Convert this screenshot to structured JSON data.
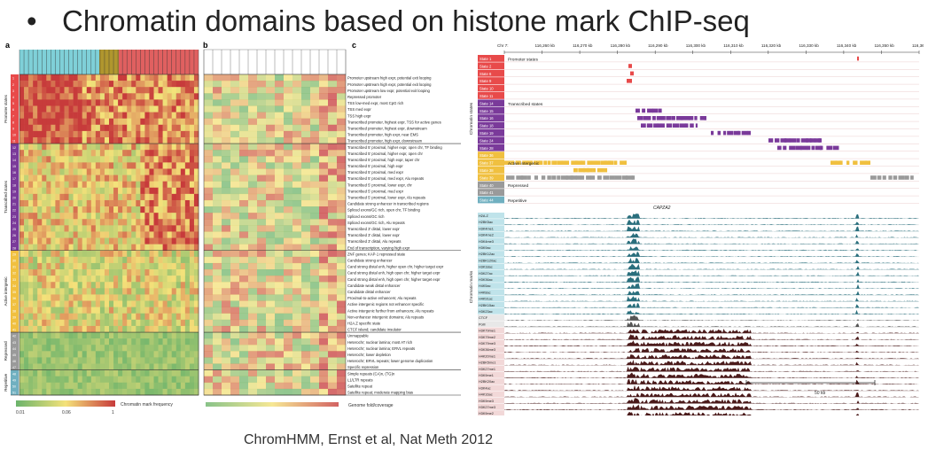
{
  "slide": {
    "title": "Chromatin domains based on histone mark ChIP-seq",
    "caption": "ChromHMM, Ernst et al, Nat Meth 2012"
  },
  "panels": {
    "a_label": "a",
    "b_label": "b",
    "c_label": "c",
    "a_side_groups": [
      "Promoter states",
      "Transcribed states",
      "Active intergenic",
      "Repressed",
      "Repetitive"
    ],
    "scale_label": "Chromatin mark frequency",
    "scale_ticks": [
      "0.01",
      "0.06",
      "1"
    ],
    "genome_fold_label": "Genome fold/coverage",
    "state_numbers": [
      "1",
      "2",
      "3",
      "4",
      "5",
      "6",
      "7",
      "8",
      "9",
      "10",
      "11",
      "12",
      "13",
      "14",
      "15",
      "16",
      "17",
      "18",
      "19",
      "20",
      "21",
      "22",
      "23",
      "24",
      "25",
      "26",
      "27",
      "28",
      "29",
      "30",
      "31",
      "32",
      "33",
      "34",
      "35",
      "36",
      "37",
      "38",
      "39",
      "40",
      "41",
      "42",
      "43",
      "44",
      "45",
      "46",
      "47",
      "48",
      "49",
      "50",
      "51"
    ],
    "descriptions": [
      "Promoter upstream high expr, potential exit looping",
      "Promoter upstream high expr, potential exit looping",
      "Promoter upstream low expr, potential exit looping",
      "Repressed promoter",
      "TSS low-med expr, most CpG rich",
      "TSS med expr",
      "TSS high expr",
      "Transcribed promoter, highest expr, TSS for active genes",
      "Transcribed promoter, highest expr, downstream",
      "Transcribed promoter, high expr, near EMS",
      "Transcribed promoter, high expr, downstream",
      "Transcribed 5' proximal, higher expr, open chr, TF binding",
      "Transcribed 5' proximal, higher expr, open chr",
      "Transcribed 5' proximal, high expr, taper chr",
      "Transcribed 5' proximal, high expr",
      "Transcribed 5' proximal, med expr",
      "Transcribed 5' proximal, med expr, Alu repeats",
      "Transcribed 5' proximal, lower expr, chr",
      "Transcribed 5' proximal, med expr",
      "Transcribed 5' proximal, lower expr, Alu repeats",
      "Candidate strong enhancer in transcribed regions",
      "Spliced exons/GC rich, open chr, TF binding",
      "Spliced exons/GC rich",
      "Spliced exons/GC rich, Alu repeats",
      "Transcribed 3' distal, lower expr",
      "Transcribed 3' distal, lower expr",
      "Transcribed 3' distal, Alu repeats",
      "End of transcription, varying high expr",
      "ZNF genes; KAP-1 repressed state",
      "Candidate strong enhancer",
      "Cand strong distal enh, higher open chr, higher target expr",
      "Cand strong distal enh, high open chr, higher target expr",
      "Cand strong distal enh, high open chr, higher target expr",
      "Candidate weak distal enhancer",
      "Candidate distal enhancer",
      "Proximal-to-active enhancers; Alu repeats",
      "Active intergenic regions not enhancer specific",
      "Active intergenic further from enhancers; Alu repeats",
      "Non-enhancer intergenic domains; Alu repeats",
      "H2A.Z specific state",
      "CTCF island; candidate insulator",
      "Unmappable",
      "Heterochr; nuclear lamina; most AT rich",
      "Heterochr; nuclear lamina; ERVL repeats",
      "Heterochr; lower depletion",
      "Heterochr; ERVL repeats; lower genome duplication",
      "Specific repression",
      "Simple repeats (CA)n, (TG)n",
      "L1/LTR repeats",
      "Satellite repeat",
      "Satellite repeat; moderate mapping bias"
    ],
    "c_axis_ticks": [
      "Chr 7:",
      "116,260 kb",
      "116,270 kb",
      "116,280 kb",
      "116,290 kb",
      "116,300 kb",
      "116,310 kb",
      "116,320 kb",
      "116,330 kb",
      "116,340 kb",
      "116,350 kb",
      "116,360 kb"
    ],
    "c_state_labels": [
      "State 1",
      "State 2",
      "State 6",
      "State 9",
      "State 10",
      "State 11",
      "State 14",
      "State 15",
      "State 16",
      "State 18",
      "State 19",
      "State 24",
      "State 28",
      "State 36",
      "State 37",
      "State 38",
      "State 39",
      "State 40",
      "State 41",
      "State 44"
    ],
    "c_group_labels": [
      "Promoter states",
      "Transcribed states",
      "Active intergenic",
      "Repressed",
      "Repetitive"
    ],
    "c_side_labels": [
      "Chromatin states",
      "Chromatin marks"
    ],
    "c_gene": "CAPZA2",
    "c_marks": [
      "H2A.Z",
      "H2BK5ac",
      "H3K4me1",
      "H3K4me2",
      "H3K4me3",
      "H3K9ac",
      "H2BK12ac",
      "H2BK120ac",
      "H3K18ac",
      "H3K27ac",
      "H3K36ac",
      "H4K5ac",
      "H4K8ac",
      "H4K91ac",
      "H2BK15ac",
      "H3K23ac",
      "CTCF",
      "PolII",
      "H3K79me1",
      "H3K79me2",
      "H3K79me3",
      "H3K36me3",
      "H4K20me1",
      "H2BK5me1",
      "H3K27me1",
      "H3K9me1",
      "H2BK20ac",
      "H3K4ac",
      "H4K16ac",
      "H3K9me3",
      "H3K27me3",
      "H3K9me2",
      "H3K4me1b",
      "H3K79me2b",
      "H3K27me2",
      "H3R2me1"
    ],
    "c_scale": "50 kb",
    "colors": {
      "promoter": "#e84a4a",
      "transcribed": "#7a3a9a",
      "intergenic": "#f0c040",
      "repressed": "#9a9a9a",
      "repetitive": "#70b0c0",
      "heat_high": "#c73b3b",
      "heat_mid": "#f4e27a",
      "heat_low": "#6bb36b"
    }
  }
}
